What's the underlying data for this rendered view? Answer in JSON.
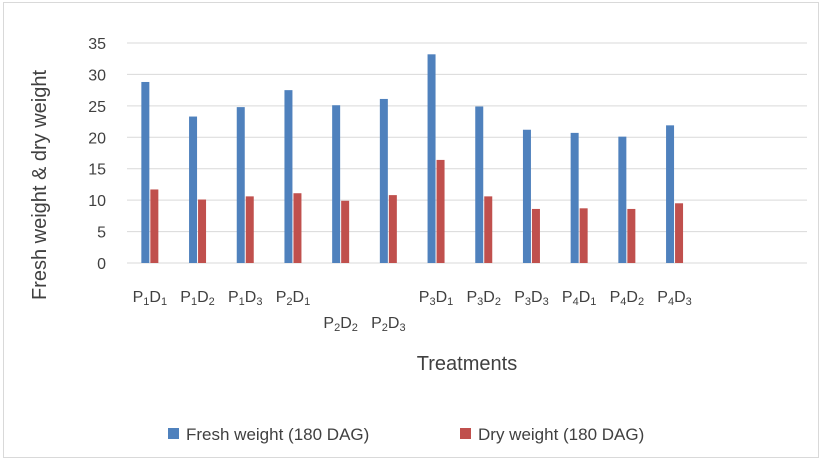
{
  "chart_data": {
    "type": "bar",
    "title": "",
    "xlabel": "Treatments",
    "ylabel": "Fresh weight & dry weight",
    "ylim": [
      0,
      35
    ],
    "yticks": [
      0,
      5,
      10,
      15,
      20,
      25,
      30,
      35
    ],
    "grid": true,
    "legend_position": "bottom",
    "categories": [
      {
        "p": "1",
        "d": "1"
      },
      {
        "p": "1",
        "d": "2"
      },
      {
        "p": "1",
        "d": "3"
      },
      {
        "p": "2",
        "d": "1"
      },
      {
        "p": "2",
        "d": "2"
      },
      {
        "p": "2",
        "d": "3"
      },
      {
        "p": "3",
        "d": "1"
      },
      {
        "p": "3",
        "d": "2"
      },
      {
        "p": "3",
        "d": "3"
      },
      {
        "p": "4",
        "d": "1"
      },
      {
        "p": "4",
        "d": "2"
      },
      {
        "p": "4",
        "d": "3"
      }
    ],
    "series": [
      {
        "name": "Fresh weight (180 DAG)",
        "color": "#4f81bd",
        "values": [
          28.8,
          23.3,
          24.8,
          27.5,
          25.1,
          26.1,
          33.2,
          24.9,
          21.2,
          20.7,
          20.1,
          21.9
        ]
      },
      {
        "name": "Dry weight (180 DAG)",
        "color": "#c0504d",
        "values": [
          11.7,
          10.1,
          10.6,
          11.1,
          9.9,
          10.8,
          16.4,
          10.6,
          8.6,
          8.7,
          8.6,
          9.5
        ]
      }
    ],
    "gridline_color": "#d9d9d9"
  }
}
